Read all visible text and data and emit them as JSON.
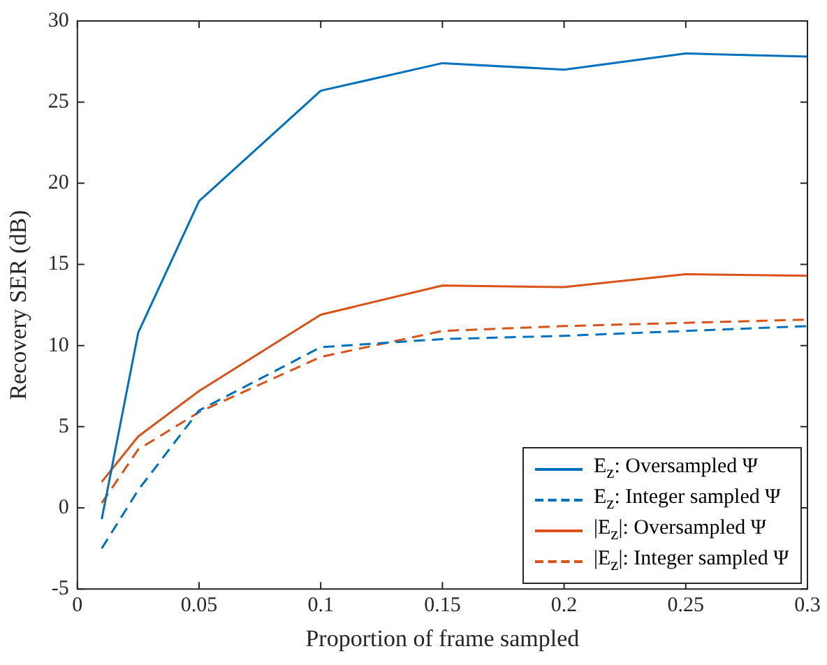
{
  "chart_data": {
    "type": "line",
    "xlabel": "Proportion of frame sampled",
    "ylabel": "Recovery SER (dB)",
    "x": [
      0.01,
      0.025,
      0.05,
      0.1,
      0.15,
      0.2,
      0.25,
      0.3
    ],
    "xlim": [
      0,
      0.3
    ],
    "xticks": [
      0,
      0.05,
      0.1,
      0.15,
      0.2,
      0.25,
      0.3
    ],
    "ylim": [
      -5,
      30
    ],
    "yticks": [
      -5,
      0,
      5,
      10,
      15,
      20,
      25,
      30
    ],
    "grid": false,
    "legend": "bottom right",
    "marker": "none",
    "series": [
      {
        "name": "E$_{z}$: Oversampled Ψ",
        "color": "#0072bd",
        "line_style": "solid",
        "values": [
          -0.7,
          10.8,
          18.9,
          25.7,
          27.4,
          27.0,
          28.0,
          27.8
        ]
      },
      {
        "name": "E$_{z}$: Integer sampled Ψ",
        "color": "#0072bd",
        "line_style": "dashed",
        "values": [
          -2.5,
          1.1,
          6.0,
          9.9,
          10.4,
          10.6,
          10.9,
          11.2
        ]
      },
      {
        "name": "|E$_{z}$|: Oversampled Ψ",
        "color": "#d95319",
        "line_style": "solid",
        "values": [
          1.6,
          4.4,
          7.2,
          11.9,
          13.7,
          13.6,
          14.4,
          14.3
        ]
      },
      {
        "name": "|E$_{z}$|: Integer sampled Ψ",
        "color": "#d95319",
        "line_style": "dashed",
        "values": [
          0.3,
          3.6,
          5.9,
          9.3,
          10.9,
          11.2,
          11.4,
          11.6
        ]
      }
    ]
  }
}
